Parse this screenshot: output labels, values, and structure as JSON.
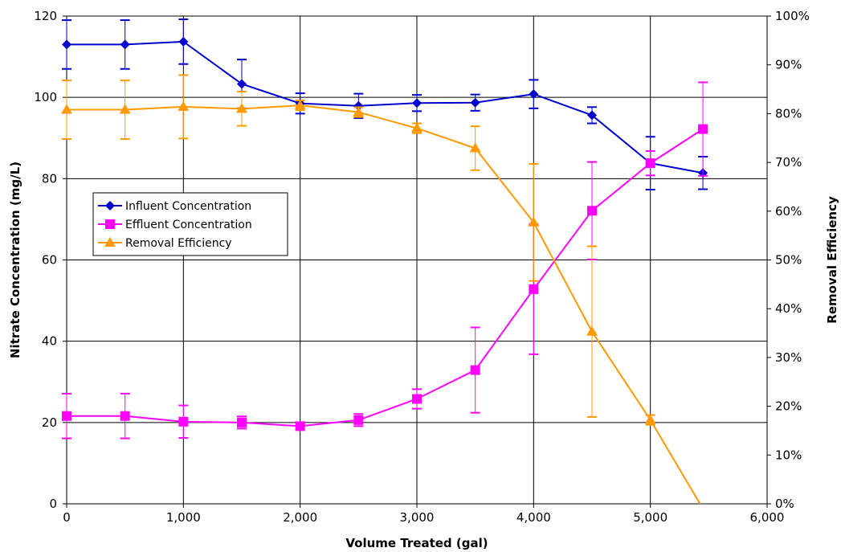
{
  "chart_data": {
    "type": "line",
    "title": "",
    "xlabel": "Volume Treated (gal)",
    "ylabel": "Nitrate Concentration (mg/L)",
    "y2label": "Removal Efficiency",
    "xlim": [
      0,
      6000
    ],
    "ylim": [
      0,
      120
    ],
    "y2lim": [
      0,
      1
    ],
    "x_ticks": [
      0,
      1000,
      2000,
      3000,
      4000,
      5000,
      6000
    ],
    "x_tick_labels": [
      "0",
      "1,000",
      "2,000",
      "3,000",
      "4,000",
      "5,000",
      "6,000"
    ],
    "y_ticks": [
      0,
      20,
      40,
      60,
      80,
      100,
      120
    ],
    "y_tick_labels": [
      "0",
      "20",
      "40",
      "60",
      "80",
      "100",
      "120"
    ],
    "y2_ticks": [
      0,
      0.1,
      0.2,
      0.3,
      0.4,
      0.5,
      0.6,
      0.7,
      0.8,
      0.9,
      1.0
    ],
    "y2_tick_labels": [
      "0%",
      "10%",
      "20%",
      "30%",
      "40%",
      "50%",
      "60%",
      "70%",
      "80%",
      "90%",
      "100%"
    ],
    "grid": true,
    "legend_position": "middle-left",
    "series": [
      {
        "name": "Influent Concentration",
        "axis": "left",
        "color": "#0000cc",
        "marker": "diamond",
        "x": [
          0,
          500,
          1000,
          1500,
          2000,
          2500,
          3000,
          3500,
          4000,
          4500,
          5000,
          5450
        ],
        "y": [
          113,
          113,
          113.7,
          103.3,
          98.5,
          97.9,
          98.6,
          98.7,
          100.8,
          95.6,
          83.8,
          81.4
        ],
        "err": [
          6,
          6,
          5.5,
          6,
          2.5,
          3,
          2,
          2,
          3.5,
          2,
          6.5,
          4
        ]
      },
      {
        "name": "Effluent  Concentration",
        "axis": "left",
        "color": "#ff00ff",
        "marker": "square",
        "x": [
          0,
          500,
          1000,
          1500,
          2000,
          2500,
          3000,
          3500,
          4000,
          4500,
          5000,
          5450
        ],
        "y": [
          21.6,
          21.6,
          20.2,
          20.0,
          19.1,
          20.6,
          25.8,
          32.9,
          52.8,
          72.1,
          83.8,
          92.2
        ],
        "err": [
          5.5,
          5.5,
          4,
          1.5,
          0.8,
          1.5,
          2.4,
          10.5,
          16,
          12,
          3,
          11.5
        ]
      },
      {
        "name": "Removal Efficiency",
        "axis": "right",
        "color": "#ff9900",
        "marker": "triangle",
        "x": [
          0,
          500,
          1000,
          1500,
          2000,
          2500,
          3000,
          3500,
          4000,
          4500,
          5000,
          5450
        ],
        "y": [
          0.808,
          0.808,
          0.814,
          0.81,
          0.817,
          0.803,
          0.77,
          0.729,
          0.577,
          0.353,
          0.172,
          -0.01
        ],
        "err": [
          0.06,
          0.06,
          0.065,
          0.035,
          0.01,
          0.01,
          0.01,
          0.045,
          0.12,
          0.175,
          0.01,
          0
        ]
      }
    ]
  }
}
